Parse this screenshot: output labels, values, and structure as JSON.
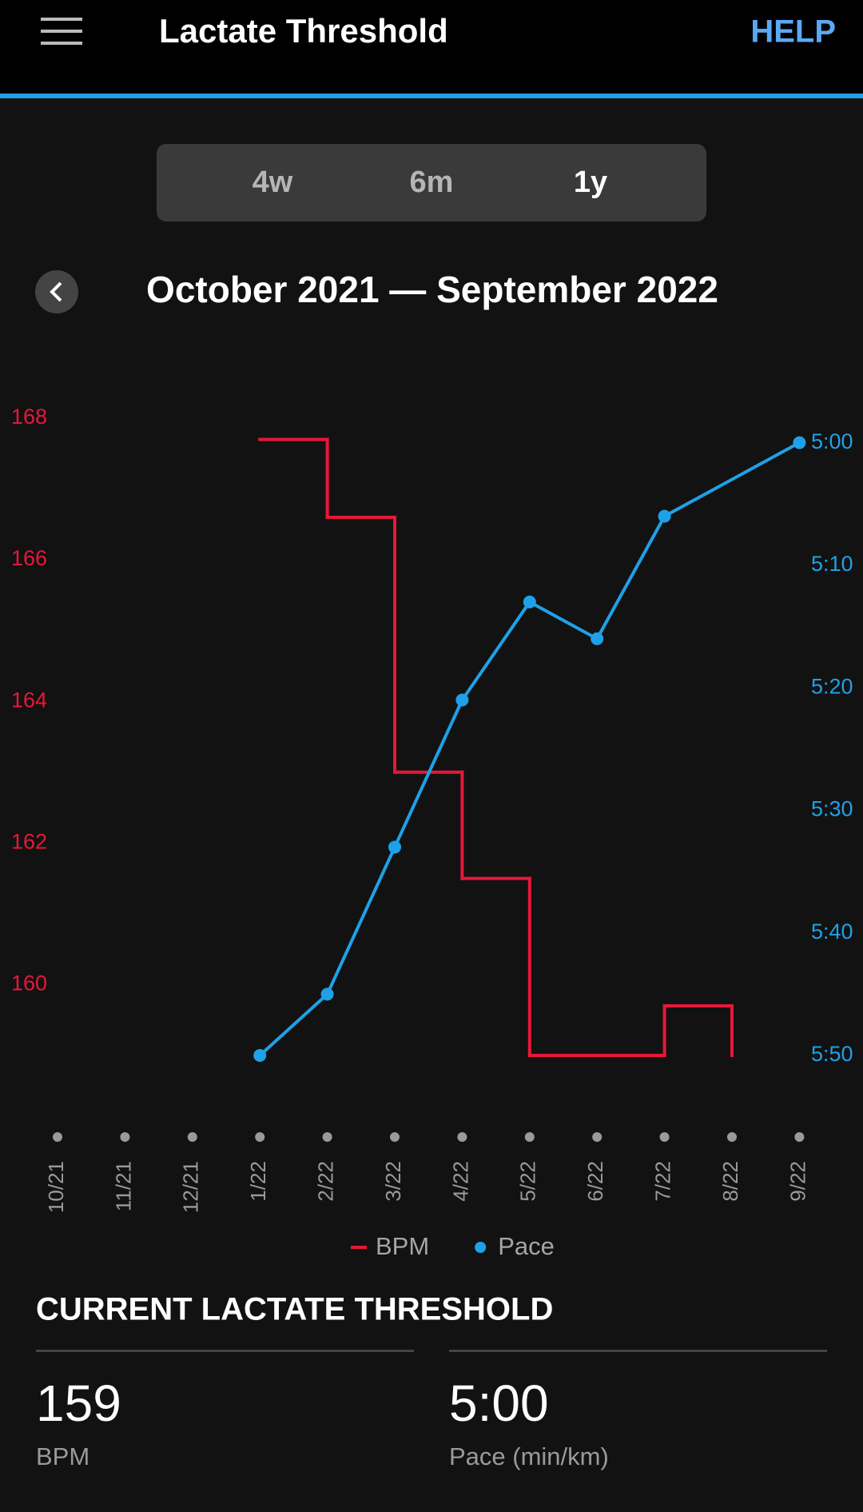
{
  "header": {
    "title": "Lactate Threshold",
    "help": "HELP"
  },
  "tabs": [
    "4w",
    "6m",
    "1y"
  ],
  "selected_tab": 2,
  "date_range": "October 2021 — September 2022",
  "chart_data": {
    "type": "line",
    "categories": [
      "10/21",
      "11/21",
      "12/21",
      "1/22",
      "2/22",
      "3/22",
      "4/22",
      "5/22",
      "6/22",
      "7/22",
      "8/22",
      "9/22"
    ],
    "ylim": [
      159,
      168
    ],
    "yticks": [
      160,
      162,
      164,
      166,
      168
    ],
    "y2lim": [
      350,
      298
    ],
    "y2ticks": [
      {
        "value": 300,
        "label": "5:00"
      },
      {
        "value": 310,
        "label": "5:10"
      },
      {
        "value": 320,
        "label": "5:20"
      },
      {
        "value": 330,
        "label": "5:30"
      },
      {
        "value": 340,
        "label": "5:40"
      },
      {
        "value": 350,
        "label": "5:50"
      }
    ],
    "series": [
      {
        "name": "BPM",
        "color": "#e8173a",
        "line_style": "step",
        "values": [
          null,
          null,
          null,
          167.7,
          166.6,
          163.0,
          161.5,
          159.0,
          159.0,
          159.7,
          159.0,
          null
        ]
      },
      {
        "name": "Pace",
        "color": "#1ea1e8",
        "axis": "y2",
        "line_style": "markers",
        "x": [
          "1/22",
          "2/22",
          "3/22",
          "4/22",
          "5/22",
          "6/22",
          "7/22",
          "9/22"
        ],
        "values": [
          350,
          345,
          333,
          321,
          313,
          316,
          306,
          300
        ]
      }
    ]
  },
  "current": {
    "title": "CURRENT LACTATE THRESHOLD",
    "items": [
      {
        "value": 159,
        "unit": "BPM"
      },
      {
        "value": "5:00",
        "unit": "Pace (min/km)"
      }
    ]
  }
}
